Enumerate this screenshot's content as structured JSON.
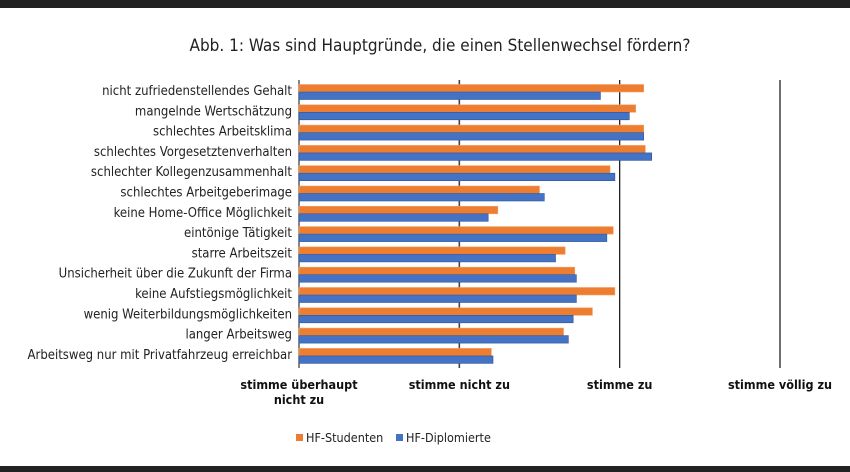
{
  "chart_data": {
    "type": "bar",
    "orientation": "horizontal",
    "title": "Abb. 1: Was sind Hauptgründe, die einen Stellenwechsel fördern?",
    "categories": [
      "nicht zufriedenstellendes Gehalt",
      "mangelnde Wertschätzung",
      "schlechtes Arbeitsklima",
      "schlechtes Vorgesetztenverhalten",
      "schlechter Kollegenzusammenhalt",
      "schlechtes Arbeitgeberimage",
      "keine Home-Office Möglichkeit",
      "eintönige Tätigkeit",
      "starre Arbeitszeit",
      "Unsicherheit über die Zukunft der Firma",
      "keine Aufstiegsmöglichkeit",
      "wenig Weiterbildungsmöglichkeiten",
      "langer Arbeitsweg",
      "Arbeitsweg nur mit Privatfahrzeug erreichbar"
    ],
    "series": [
      {
        "name": "HF-Studenten",
        "color": "#ED7D31",
        "values": [
          3.15,
          3.1,
          3.15,
          3.16,
          2.94,
          2.5,
          2.24,
          2.96,
          2.66,
          2.72,
          2.97,
          2.83,
          2.65,
          2.2
        ]
      },
      {
        "name": "HF-Diplomierte",
        "color": "#4472C4",
        "values": [
          2.88,
          3.06,
          3.15,
          3.2,
          2.97,
          2.53,
          2.18,
          2.92,
          2.6,
          2.73,
          2.73,
          2.71,
          2.68,
          2.21
        ]
      }
    ],
    "xlim": [
      1,
      4
    ],
    "xticks": [
      {
        "value": 1,
        "label": [
          "stimme überhaupt",
          "nicht zu"
        ]
      },
      {
        "value": 2,
        "label": [
          "stimme nicht zu"
        ]
      },
      {
        "value": 3,
        "label": [
          "stimme zu"
        ]
      },
      {
        "value": 4,
        "label": [
          "stimme völlig zu"
        ]
      }
    ],
    "grid": true,
    "legend_position": "bottom"
  }
}
